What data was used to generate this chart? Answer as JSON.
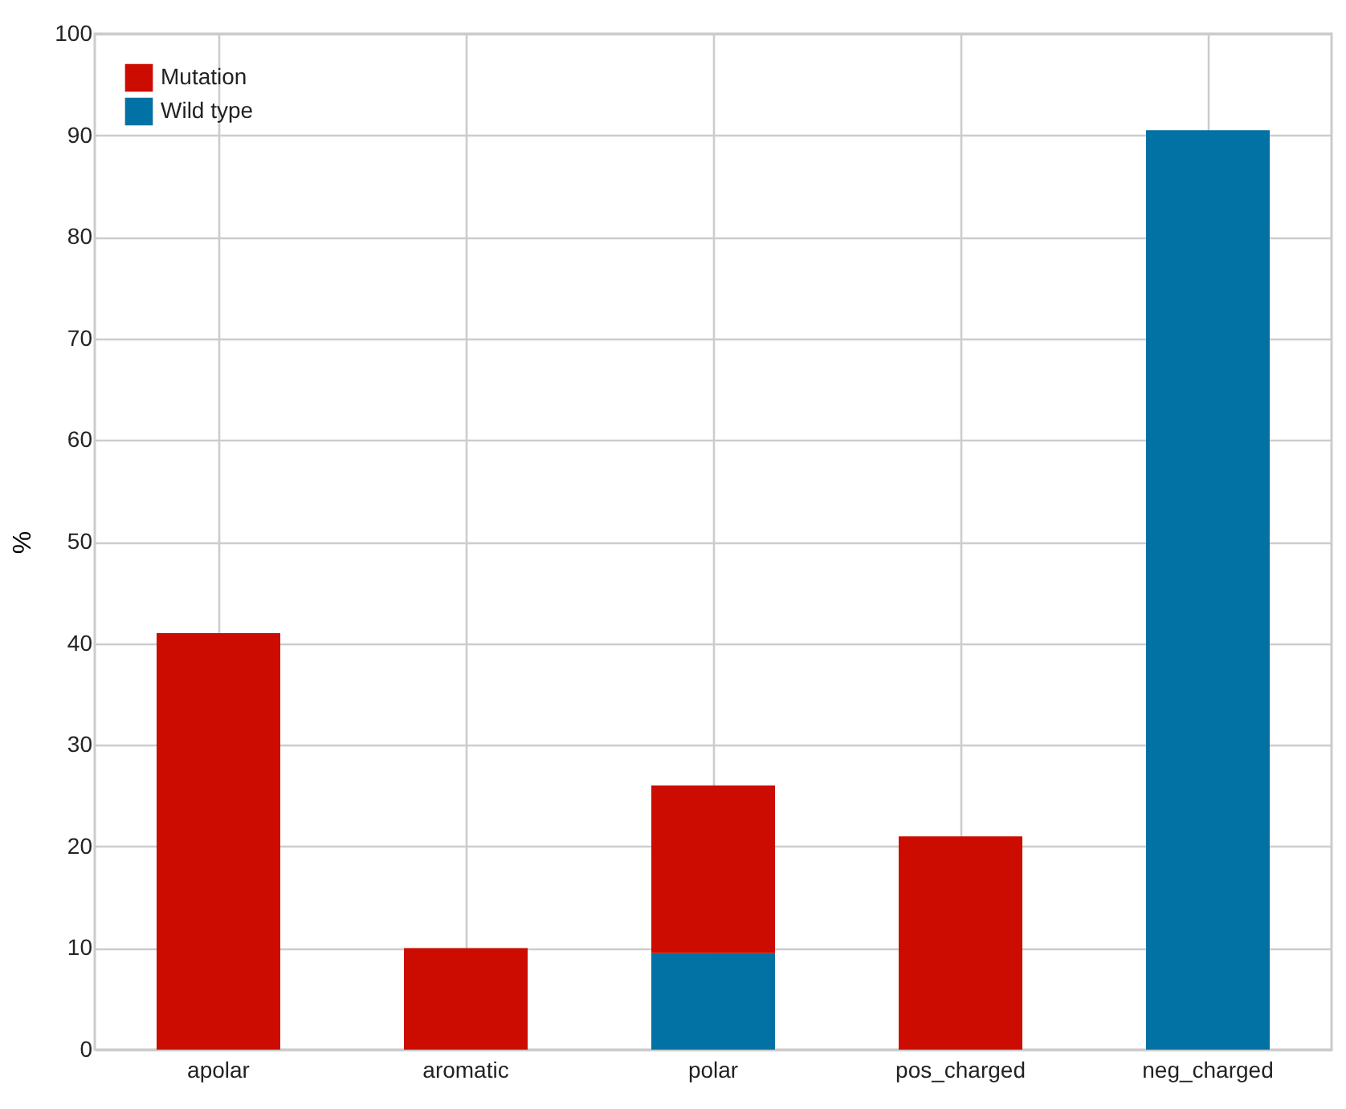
{
  "chart_data": {
    "type": "bar",
    "stacked": true,
    "ylabel": "%",
    "categories": [
      "apolar",
      "aromatic",
      "polar",
      "pos_charged",
      "neg_charged"
    ],
    "series": [
      {
        "name": "Wild type",
        "color": "#0271a3",
        "values": [
          null,
          null,
          9.5,
          null,
          90.5
        ]
      },
      {
        "name": "Mutation",
        "color": "#cc0c00",
        "values": [
          41,
          10,
          16.5,
          21,
          null
        ]
      }
    ],
    "ylim": [
      0,
      100
    ],
    "yticks": [
      0,
      10,
      20,
      30,
      40,
      50,
      60,
      70,
      80,
      90,
      100
    ],
    "grid": true,
    "legend": "top left"
  }
}
